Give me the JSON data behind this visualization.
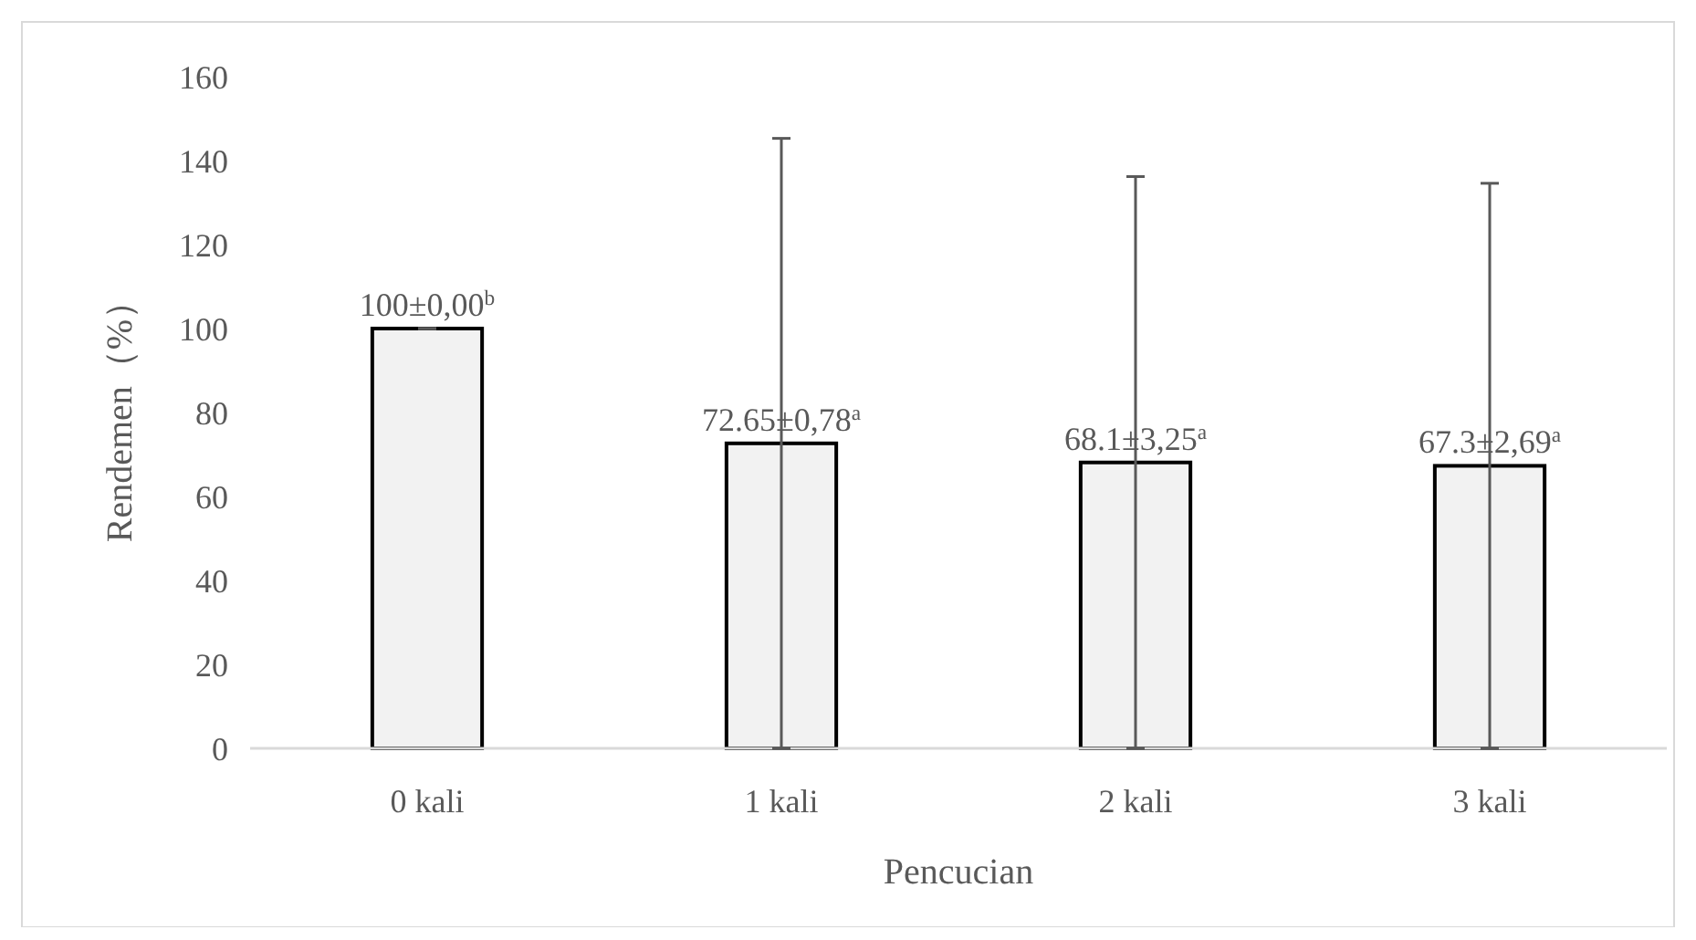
{
  "chart_data": {
    "type": "bar",
    "xlabel": "Pencucian",
    "ylabel": "Rendemen（%）",
    "categories": [
      "0 kali",
      "1 kali",
      "2 kali",
      "3 kali"
    ],
    "values": [
      100,
      72.65,
      68.1,
      67.3
    ],
    "errors": [
      0,
      72.65,
      68.1,
      67.3
    ],
    "value_labels": [
      "100±0,00$^{b}$",
      "72.65±0,78$^{a}$",
      "68.1±3,25$^{a}$",
      "67.3±2,69$^{a}$"
    ],
    "color": "#f2f2f2",
    "ylim": [
      0,
      160
    ],
    "yticks": [
      0,
      20,
      40,
      60,
      80,
      100,
      120,
      140,
      160
    ],
    "grid": false
  }
}
